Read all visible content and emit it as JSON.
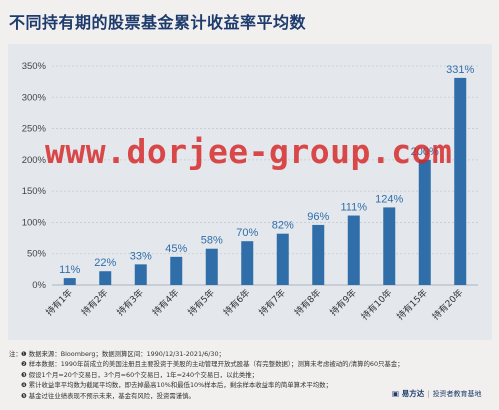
{
  "title": "不同持有期的股票基金累计收益率平均数",
  "watermark": "www.dorjee-group.com",
  "chart_data": {
    "type": "bar",
    "categories": [
      "持有1年",
      "持有2年",
      "持有3年",
      "持有4年",
      "持有5年",
      "持有6年",
      "持有7年",
      "持有8年",
      "持有9年",
      "持有10年",
      "持有15年",
      "持有20年"
    ],
    "values": [
      11,
      22,
      33,
      45,
      58,
      70,
      82,
      96,
      111,
      124,
      200,
      331
    ],
    "value_labels": [
      "11%",
      "22%",
      "33%",
      "45%",
      "58%",
      "70%",
      "82%",
      "96%",
      "111%",
      "124%",
      "200%",
      "331%"
    ],
    "yticks": [
      0,
      50,
      100,
      150,
      200,
      250,
      300,
      350
    ],
    "ytick_labels": [
      "0%",
      "50%",
      "100%",
      "150%",
      "200%",
      "250%",
      "300%",
      "350%"
    ],
    "ylim": [
      0,
      350
    ],
    "grid": true,
    "bar_color": "#2f6ea9",
    "label_color": "#2f6ea9"
  },
  "notes": {
    "label": "注：",
    "lines": [
      "❶ 数据来源：Bloomberg；数据测算区间：1990/12/31-2021/6/30；",
      "❷ 样本数据：1990年前成立的美国注册且主要投资于美股的主动管理开放式股基（有完整数据）；测算未考虑被动的/清算的60只基金；",
      "❸ 假设1个月=20个交易日，3个月=60个交易日，1年=240个交易日，以此类推；",
      "❹ 累计收益率平均数为截尾平均数，即去掉最高10%和最低10%样本后，剩余样本收益率的简单算术平均数；",
      "❺ 基金过往业绩表现不预示未来，基金有风险，投资需谨慎。"
    ]
  },
  "brand": {
    "logo": "▣ 易方达",
    "sep": "|",
    "tagline": "投资者教育基地"
  }
}
